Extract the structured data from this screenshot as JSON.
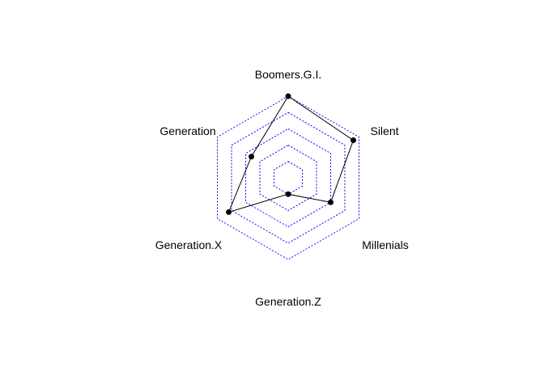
{
  "chart_data": {
    "type": "radar",
    "axes": [
      "Boomers.G.I.",
      "Silent",
      "Millenials",
      "Generation.Z",
      "Generation.X",
      "Generation"
    ],
    "series": [
      {
        "values": [
          1.0,
          0.9,
          0.5,
          0.0,
          0.8,
          0.4
        ]
      }
    ],
    "range": [
      0,
      1
    ],
    "rings": 4,
    "grid": true,
    "grid_color": "#0000ff",
    "line_color": "#000000",
    "point_color": "#000000",
    "legend": "none"
  }
}
